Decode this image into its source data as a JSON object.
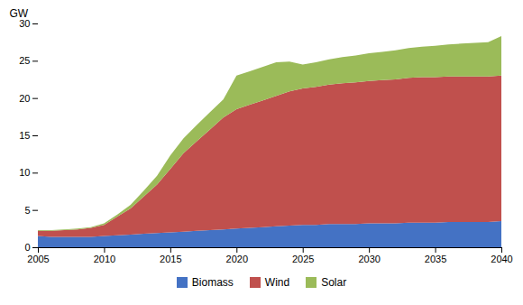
{
  "chart_data": {
    "type": "area",
    "stacked": true,
    "ylabel": "GW",
    "x": [
      2005,
      2006,
      2007,
      2008,
      2009,
      2010,
      2011,
      2012,
      2013,
      2014,
      2015,
      2016,
      2017,
      2018,
      2019,
      2020,
      2021,
      2022,
      2023,
      2024,
      2025,
      2026,
      2027,
      2028,
      2029,
      2030,
      2031,
      2032,
      2033,
      2034,
      2035,
      2036,
      2037,
      2038,
      2039,
      2040
    ],
    "series": [
      {
        "name": "Biomass",
        "color": "#4472C4",
        "values": [
          1.5,
          1.4,
          1.4,
          1.4,
          1.4,
          1.5,
          1.6,
          1.7,
          1.8,
          1.9,
          2.0,
          2.1,
          2.2,
          2.3,
          2.4,
          2.5,
          2.6,
          2.7,
          2.8,
          2.9,
          3.0,
          3.0,
          3.1,
          3.1,
          3.1,
          3.2,
          3.2,
          3.2,
          3.3,
          3.3,
          3.3,
          3.4,
          3.4,
          3.4,
          3.4,
          3.5
        ]
      },
      {
        "name": "Wind",
        "color": "#C0504D",
        "values": [
          0.7,
          0.8,
          0.9,
          1.0,
          1.2,
          1.5,
          2.5,
          3.5,
          5.0,
          6.5,
          8.5,
          10.5,
          12.0,
          13.5,
          15.0,
          16.0,
          16.5,
          17.0,
          17.5,
          18.0,
          18.3,
          18.5,
          18.7,
          18.9,
          19.0,
          19.1,
          19.2,
          19.3,
          19.4,
          19.5,
          19.5,
          19.5,
          19.5,
          19.5,
          19.5,
          19.5
        ]
      },
      {
        "name": "Solar",
        "color": "#9BBB59",
        "values": [
          0.1,
          0.1,
          0.1,
          0.1,
          0.1,
          0.2,
          0.3,
          0.5,
          0.8,
          1.2,
          1.8,
          2.0,
          2.2,
          2.3,
          2.4,
          4.5,
          4.5,
          4.5,
          4.5,
          4.0,
          3.2,
          3.3,
          3.4,
          3.5,
          3.6,
          3.7,
          3.8,
          3.9,
          4.0,
          4.1,
          4.2,
          4.3,
          4.4,
          4.5,
          4.6,
          5.3
        ]
      }
    ],
    "xlim": [
      2005,
      2040
    ],
    "xticks": [
      2005,
      2010,
      2015,
      2020,
      2025,
      2030,
      2035,
      2040
    ],
    "ylim": [
      0,
      30
    ],
    "yticks": [
      0,
      5,
      10,
      15,
      20,
      25,
      30
    ],
    "grid": false,
    "legend": "bottom"
  }
}
